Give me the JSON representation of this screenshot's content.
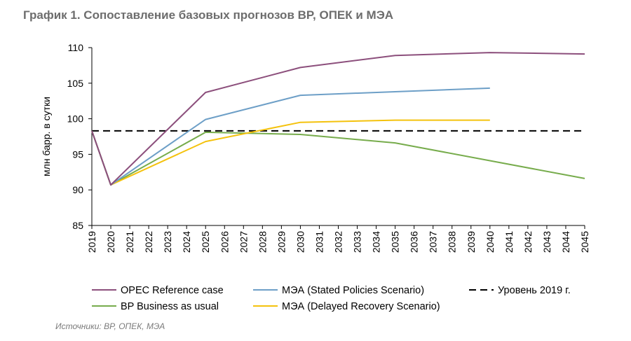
{
  "title": "График 1. Сопоставление базовых прогнозов BP, ОПЕК и МЭА",
  "source": "Источники: BP, ОПЕК, МЭА",
  "chart_data": {
    "type": "line",
    "ylabel": "млн барр. в сутки",
    "ylim": [
      85,
      110
    ],
    "yticks": [
      85,
      90,
      95,
      100,
      105,
      110
    ],
    "x": [
      2019,
      2020,
      2021,
      2022,
      2023,
      2024,
      2025,
      2026,
      2027,
      2028,
      2029,
      2030,
      2031,
      2032,
      2033,
      2034,
      2035,
      2036,
      2037,
      2038,
      2039,
      2040,
      2041,
      2042,
      2043,
      2044,
      2045
    ],
    "grid": false,
    "legend_position": "bottom",
    "series": [
      {
        "name": "OPEC Reference case",
        "color": "#8c4f7c",
        "points": [
          [
            2019,
            98.3
          ],
          [
            2020,
            90.7
          ],
          [
            2025,
            103.7
          ],
          [
            2030,
            107.2
          ],
          [
            2035,
            108.9
          ],
          [
            2040,
            109.3
          ],
          [
            2045,
            109.1
          ]
        ]
      },
      {
        "name": "BP Business as usual",
        "color": "#77ac4c",
        "points": [
          [
            2019,
            98.3
          ],
          [
            2020,
            90.7
          ],
          [
            2025,
            98.1
          ],
          [
            2030,
            97.8
          ],
          [
            2035,
            96.6
          ],
          [
            2040,
            94.1
          ],
          [
            2045,
            91.6
          ]
        ]
      },
      {
        "name": "МЭА (Stated Policies Scenario)",
        "color": "#6d9fc7",
        "points": [
          [
            2019,
            98.3
          ],
          [
            2020,
            90.7
          ],
          [
            2025,
            99.9
          ],
          [
            2030,
            103.3
          ],
          [
            2035,
            103.8
          ],
          [
            2040,
            104.3
          ]
        ]
      },
      {
        "name": "МЭА (Delayed Recovery Scenario)",
        "color": "#f4c20d",
        "points": [
          [
            2019,
            98.3
          ],
          [
            2020,
            90.7
          ],
          [
            2025,
            96.8
          ],
          [
            2030,
            99.5
          ],
          [
            2035,
            99.8
          ],
          [
            2040,
            99.8
          ]
        ]
      },
      {
        "name": "Уровень 2019 г.",
        "color": "#000000",
        "dashed": true,
        "points": [
          [
            2019,
            98.3
          ],
          [
            2045,
            98.3
          ]
        ]
      }
    ]
  }
}
